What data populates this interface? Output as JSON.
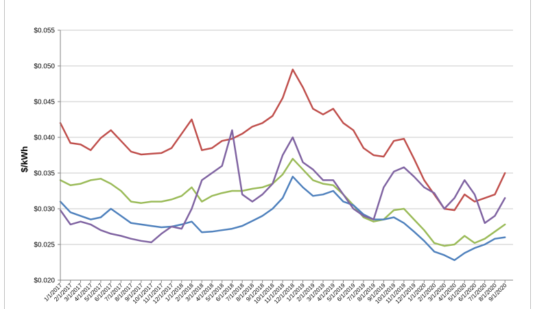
{
  "chart_data": {
    "type": "line",
    "title": "",
    "xlabel": "",
    "ylabel": "$/kWh",
    "ylim": [
      0.02,
      0.055
    ],
    "y_ticks": [
      "$0.020",
      "$0.025",
      "$0.030",
      "$0.035",
      "$0.040",
      "$0.045",
      "$0.050",
      "$0.055"
    ],
    "x_ticks": [
      "1/1/2017",
      "2/1/2017",
      "3/1/2017",
      "4/1/2017",
      "5/1/2017",
      "6/1/2017",
      "7/1/2017",
      "8/1/2017",
      "9/1/2017",
      "10/1/2017",
      "11/1/2017",
      "12/1/2017",
      "1/1/2018",
      "2/1/2018",
      "3/1/2018",
      "4/1/2018",
      "5/1/2018",
      "6/1/2018",
      "7/1/2018",
      "8/1/2018",
      "9/1/2018",
      "10/1/2018",
      "11/1/2018",
      "12/1/2018",
      "1/1/2019",
      "2/1/2019",
      "3/1/2019",
      "4/1/2019",
      "5/1/2019",
      "6/1/2019",
      "7/1/2019",
      "8/1/2019",
      "9/1/2019",
      "10/1/2019",
      "11/1/2019",
      "12/1/2019",
      "1/1/2020",
      "2/1/2020",
      "3/1/2020",
      "4/1/2020",
      "5/1/2020",
      "6/1/2020",
      "7/1/2020",
      "8/1/2020",
      "9/1/2020"
    ],
    "grid": true,
    "legend": "none",
    "series": [
      {
        "color": "#c0504d",
        "values": [
          0.042,
          0.0392,
          0.039,
          0.0382,
          0.0399,
          0.041,
          0.0395,
          0.038,
          0.0376,
          0.0377,
          0.0378,
          0.0385,
          0.0405,
          0.0425,
          0.0382,
          0.0385,
          0.0395,
          0.0398,
          0.0405,
          0.0415,
          0.042,
          0.043,
          0.0455,
          0.0495,
          0.047,
          0.044,
          0.0432,
          0.044,
          0.042,
          0.041,
          0.0385,
          0.0375,
          0.0373,
          0.0395,
          0.0398,
          0.037,
          0.034,
          0.032,
          0.03,
          0.0298,
          0.032,
          0.031,
          0.0315,
          0.032,
          0.035
        ]
      },
      {
        "color": "#9bbb59",
        "values": [
          0.034,
          0.0333,
          0.0335,
          0.034,
          0.0342,
          0.0335,
          0.0325,
          0.031,
          0.0308,
          0.031,
          0.031,
          0.0313,
          0.0318,
          0.033,
          0.031,
          0.0318,
          0.0322,
          0.0325,
          0.0325,
          0.0328,
          0.033,
          0.0335,
          0.0348,
          0.037,
          0.0355,
          0.034,
          0.0335,
          0.0333,
          0.032,
          0.0305,
          0.0288,
          0.0282,
          0.0285,
          0.0298,
          0.03,
          0.0285,
          0.027,
          0.0252,
          0.0248,
          0.025,
          0.0262,
          0.0252,
          0.0258,
          0.0268,
          0.0278
        ]
      },
      {
        "color": "#4f81bd",
        "values": [
          0.031,
          0.0295,
          0.029,
          0.0285,
          0.0288,
          0.03,
          0.029,
          0.028,
          0.0278,
          0.0276,
          0.0274,
          0.0275,
          0.0278,
          0.0282,
          0.0267,
          0.0268,
          0.027,
          0.0272,
          0.0276,
          0.0283,
          0.029,
          0.03,
          0.0315,
          0.0345,
          0.033,
          0.0318,
          0.032,
          0.0325,
          0.031,
          0.0305,
          0.0292,
          0.0285,
          0.0285,
          0.0288,
          0.028,
          0.0268,
          0.0255,
          0.024,
          0.0235,
          0.0228,
          0.0238,
          0.0245,
          0.025,
          0.0258,
          0.026
        ]
      },
      {
        "color": "#8064a2",
        "values": [
          0.0298,
          0.0278,
          0.0282,
          0.0278,
          0.027,
          0.0265,
          0.0262,
          0.0258,
          0.0255,
          0.0253,
          0.0265,
          0.0275,
          0.0272,
          0.03,
          0.034,
          0.035,
          0.036,
          0.041,
          0.032,
          0.031,
          0.032,
          0.0335,
          0.0375,
          0.04,
          0.0365,
          0.0355,
          0.034,
          0.034,
          0.032,
          0.03,
          0.029,
          0.0285,
          0.033,
          0.0352,
          0.0358,
          0.0345,
          0.033,
          0.0322,
          0.03,
          0.0315,
          0.034,
          0.032,
          0.028,
          0.029,
          0.0315
        ]
      }
    ]
  }
}
